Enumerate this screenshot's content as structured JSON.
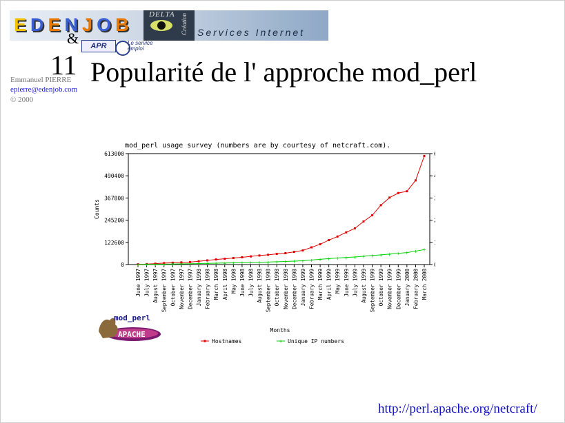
{
  "header": {
    "logo_letters": [
      "E",
      "D",
      "E",
      "N",
      "J",
      "O",
      "B"
    ],
    "logo_colors": [
      "#f2c200",
      "#3a5fd0",
      "#e87a00",
      "#3a5fd0",
      "#e87a00",
      "#3a5fd0",
      "#e87a00"
    ],
    "delta_text": "DELTA",
    "creation_text": "Création",
    "services_text": "Services Internet",
    "apr_text": "APR",
    "apr_sub": "Le service emploi",
    "amp": "&",
    "slide_number": "11",
    "title": "Popularité de l' approche mod_perl"
  },
  "author": {
    "name": "Emmanuel PIERRE",
    "email": "epierre@edenjob.com",
    "copyright": "© 2000"
  },
  "chart_data": {
    "type": "line",
    "title": "mod_perl usage survey (numbers are by courtesy of netcraft.com).",
    "xlabel": "Months",
    "ylabel": "Counts",
    "ylim": [
      0,
      613000
    ],
    "yticks": [
      "0",
      "122600",
      "245200",
      "367800",
      "490400",
      "613000"
    ],
    "ytick_values": [
      0,
      122600,
      245200,
      367800,
      490400,
      613000
    ],
    "categories": [
      "June 1997",
      "July 1997",
      "August 1997",
      "September 1997",
      "October 1997",
      "November 1997",
      "December 1997",
      "January 1998",
      "February 1998",
      "March 1998",
      "April 1998",
      "May 1998",
      "June 1998",
      "July 1998",
      "August 1998",
      "September 1998",
      "October 1998",
      "November 1998",
      "December 1998",
      "January 1999",
      "February 1999",
      "March 1999",
      "April 1999",
      "May 1999",
      "June 1999",
      "July 1999",
      "August 1999",
      "September 1999",
      "October 1999",
      "November 1999",
      "December 1999",
      "January 2000",
      "February 2000",
      "March 2000"
    ],
    "series": [
      {
        "name": "Hostnames",
        "color": "#e00000",
        "values": [
          1500,
          2500,
          5000,
          8000,
          10000,
          12000,
          14000,
          18000,
          23000,
          28000,
          32000,
          36000,
          40000,
          45000,
          50000,
          54000,
          59000,
          63000,
          70000,
          78000,
          95000,
          112000,
          135000,
          155000,
          178000,
          200000,
          238000,
          272000,
          328000,
          370000,
          395000,
          405000,
          465000,
          600000
        ]
      },
      {
        "name": "Unique IP numbers",
        "color": "#00d000",
        "values": [
          500,
          800,
          1500,
          2200,
          3000,
          3800,
          4500,
          5500,
          6500,
          7500,
          8500,
          9500,
          10500,
          11500,
          12500,
          14000,
          15500,
          17000,
          19000,
          21000,
          25000,
          29000,
          33000,
          36000,
          39000,
          42000,
          46000,
          50000,
          54000,
          58000,
          62000,
          66000,
          74000,
          83000
        ]
      }
    ]
  },
  "footer": {
    "url": "http://perl.apache.org/netcraft/"
  },
  "mod_perl_logo": {
    "top_text": "mod_perl",
    "bottom_text": "APACHE"
  }
}
